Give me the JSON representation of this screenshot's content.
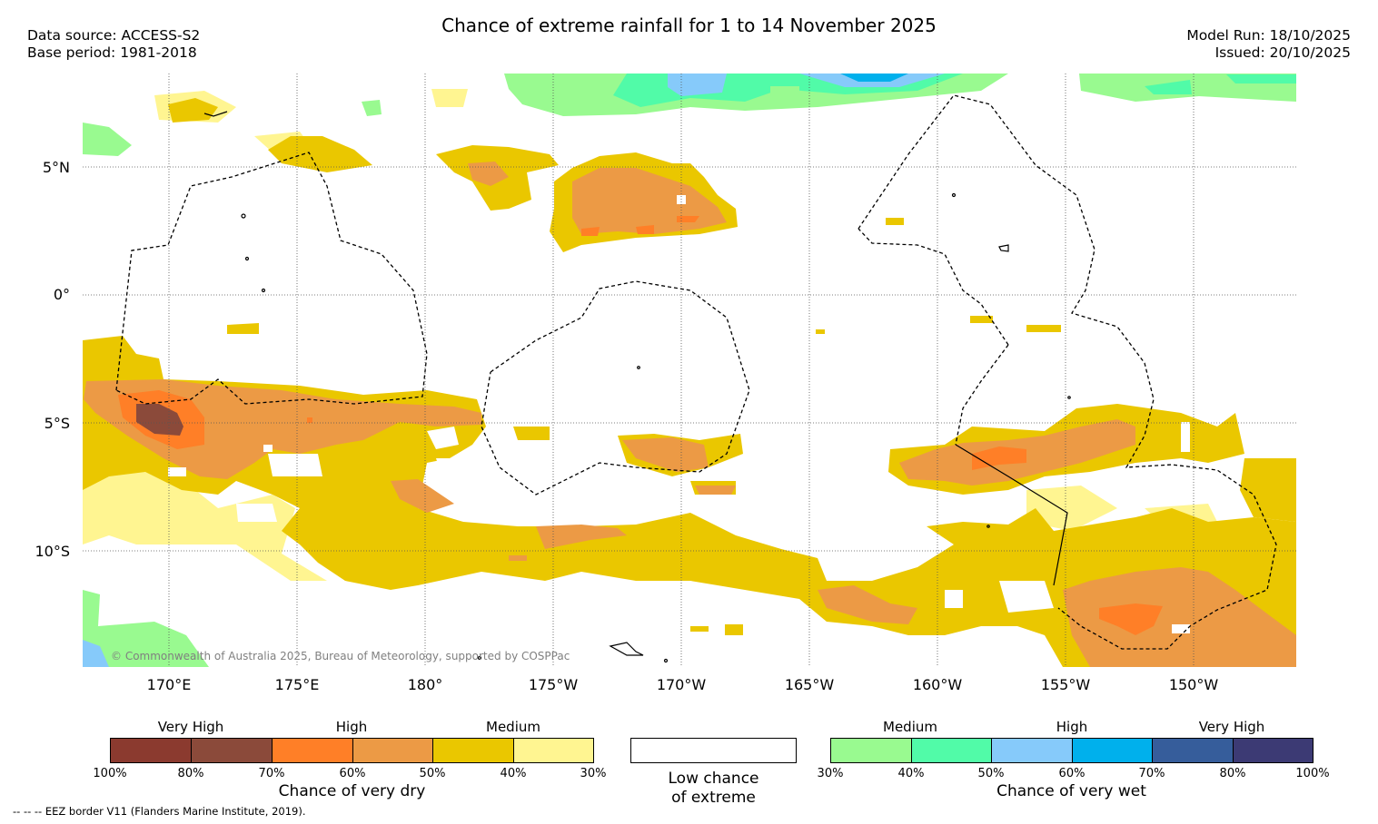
{
  "title": "Chance of extreme rainfall for 1 to 14 November 2025",
  "data_source": "Data source: ACCESS-S2",
  "base_period": "Base period: 1981-2018",
  "model_run": "Model Run: 18/10/2025",
  "issued": "Issued: 20/10/2025",
  "copyright": "© Commonwealth of Australia 2025, Bureau of Meteorology, supported by COSPPac",
  "eez_note": "-- -- -- EEZ border V11 (Flanders Marine Institute, 2019).",
  "lat_labels": [
    "5°N",
    "0°",
    "5°S",
    "10°S"
  ],
  "lon_labels": [
    "170°E",
    "175°E",
    "180°",
    "175°W",
    "170°W",
    "165°W",
    "160°W",
    "155°W",
    "150°W"
  ],
  "dry_legend": {
    "titles": [
      "Very High",
      "High",
      "Medium"
    ],
    "ticks": [
      "100%",
      "80%",
      "70%",
      "60%",
      "50%",
      "40%",
      "30%"
    ],
    "caption": "Chance of very dry",
    "colors": [
      "#8b3a2f",
      "#8b4a3a",
      "#ff7f27",
      "#ec9a45",
      "#eac700",
      "#fff591"
    ]
  },
  "low_legend": {
    "caption_line1": "Low chance",
    "caption_line2": "of extreme",
    "color": "#ffffff"
  },
  "wet_legend": {
    "titles": [
      "Medium",
      "High",
      "Very High"
    ],
    "ticks": [
      "30%",
      "40%",
      "50%",
      "60%",
      "70%",
      "80%",
      "100%"
    ],
    "caption": "Chance of very wet",
    "colors": [
      "#99fa90",
      "#51fba8",
      "#86cafa",
      "#00b0ec",
      "#365d9b",
      "#3c3a74"
    ]
  }
}
